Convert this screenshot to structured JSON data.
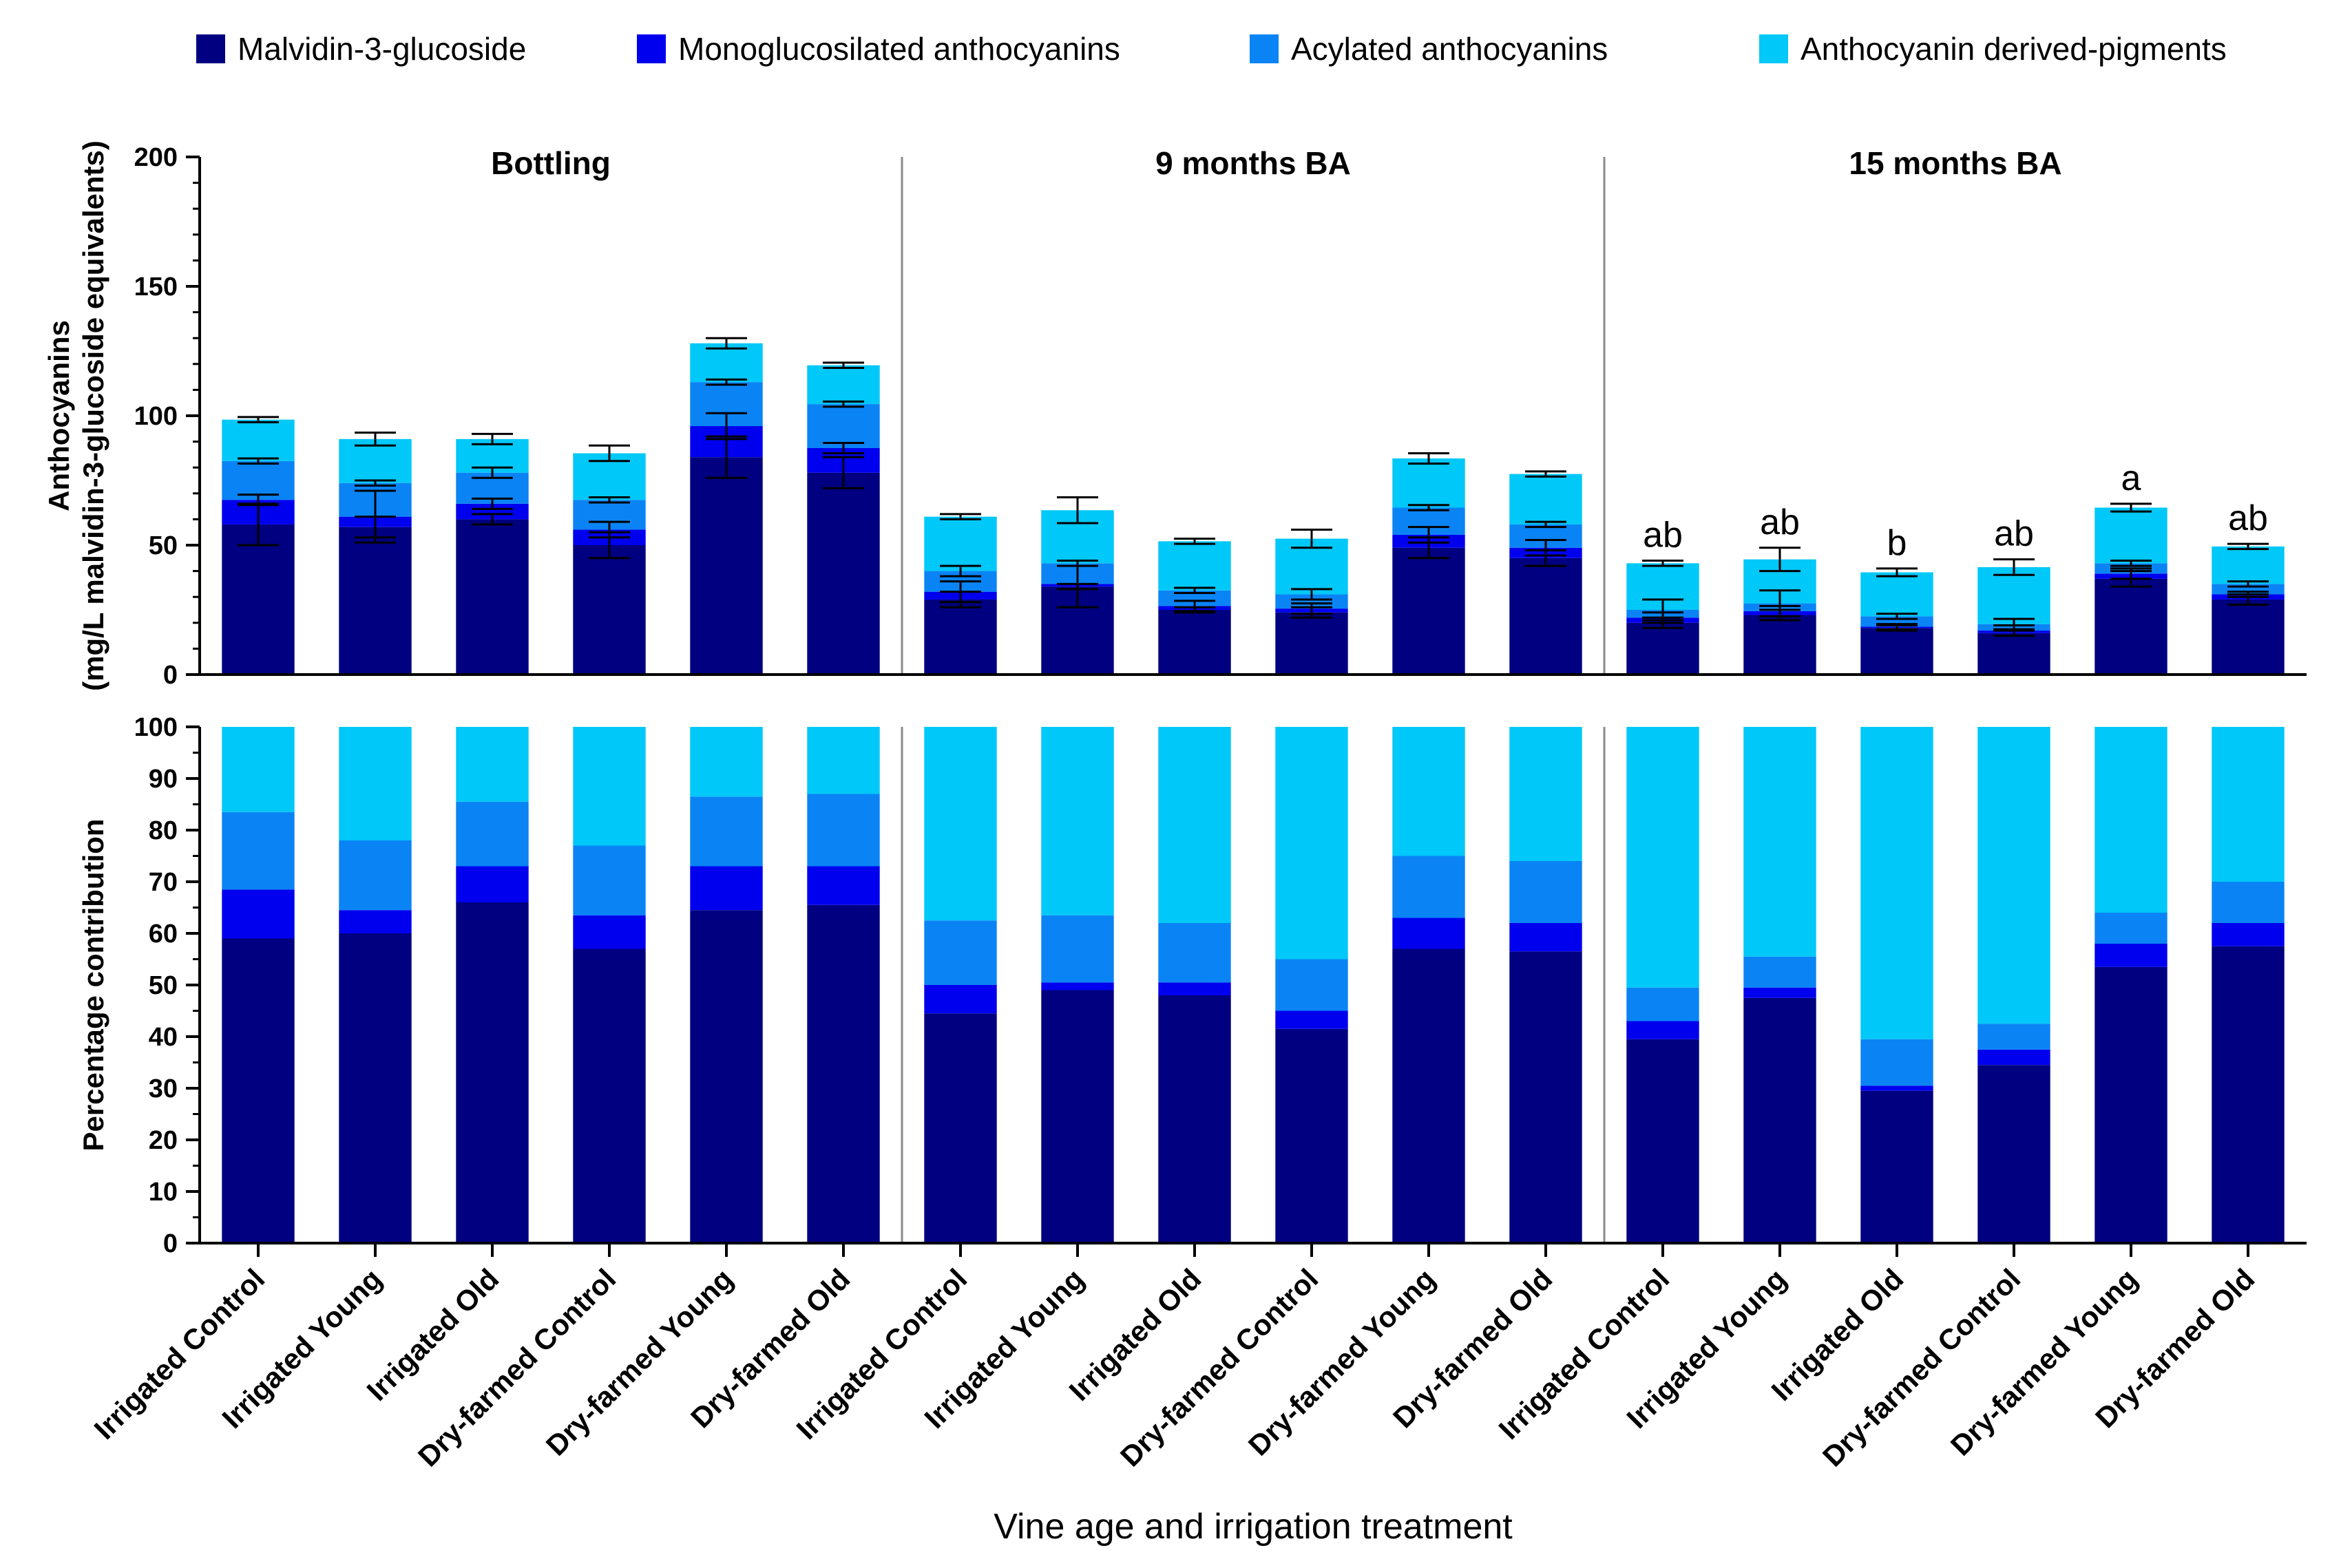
{
  "chart_data": {
    "type": "bar",
    "stacked": true,
    "legend": {
      "placement": "top",
      "entries": [
        {
          "name": "Malvidin-3-glucoside",
          "color": "#000080"
        },
        {
          "name": "Monoglucosilated anthocyanins",
          "color": "#0000EE"
        },
        {
          "name": "Acylated anthocyanins",
          "color": "#0A84F5"
        },
        {
          "name": "Anthocyanin derived-pigments",
          "color": "#00C8F8"
        }
      ]
    },
    "xlabel": "Vine age and irrigation treatment",
    "categories": [
      "Irrigated Control",
      "Irrigated Young",
      "Irrigated Old",
      "Dry-farmed Control",
      "Dry-farmed Young",
      "Dry-farmed Old",
      "Irrigated Control",
      "Irrigated Young",
      "Irrigated Old",
      "Dry-farmed Control",
      "Dry-farmed Young",
      "Dry-farmed Old",
      "Irrigated Control",
      "Irrigated Young",
      "Irrigated Old",
      "Dry-farmed Control",
      "Dry-farmed Young",
      "Dry-farmed Old"
    ],
    "groups": [
      {
        "title": "Bottling",
        "start": 0,
        "end": 5
      },
      {
        "title": "9 months BA",
        "start": 6,
        "end": 11
      },
      {
        "title": "15 months BA",
        "start": 12,
        "end": 17
      }
    ],
    "panels": [
      {
        "id": "absolute",
        "ylabel_line1": "Anthocyanins",
        "ylabel_line2": "(mg/L malvidin-3-glucoside equivalents)",
        "ylim": [
          0,
          200
        ],
        "yticks": [
          0,
          50,
          100,
          150,
          200
        ],
        "minor_step": 10,
        "series": [
          {
            "name": "Malvidin-3-glucoside",
            "values": [
              58,
              57,
              60,
              50,
              84,
              78,
              29,
              34,
              25,
              24,
              49,
              45,
              20,
              23,
              18,
              16,
              37,
              29
            ]
          },
          {
            "name": "Monoglucosilated anthocyanins",
            "values": [
              9.5,
              4,
              6,
              6,
              12,
              9.5,
              3,
              1,
              1.5,
              1.5,
              5,
              4,
              2,
              1.5,
              0.5,
              1,
              2,
              2
            ]
          },
          {
            "name": "Acylated anthocyanins",
            "values": [
              15,
              13,
              12,
              11.5,
              17,
              17,
              8,
              8,
              6,
              5.5,
              10.5,
              9,
              3,
              3,
              4,
              2.5,
              4,
              4
            ]
          },
          {
            "name": "Anthocyanin derived-pigments",
            "values": [
              16,
              17,
              13,
              18,
              15,
              15,
              21,
              20.5,
              19,
              21.5,
              19,
              19.5,
              18,
              17,
              17,
              22,
              21.5,
              14.5
            ]
          }
        ],
        "errors": [
          [
            8,
            4,
            2,
            5,
            8,
            6,
            3,
            1,
            1,
            2,
            4,
            3,
            2,
            2,
            1,
            1,
            3,
            2
          ],
          [
            2,
            10,
            2,
            3,
            5,
            2,
            4,
            9,
            2,
            2,
            3,
            3,
            2,
            2,
            1,
            2,
            2,
            1
          ],
          [
            1,
            1,
            2,
            1,
            1,
            1,
            2,
            1,
            1,
            2,
            1,
            1,
            4,
            5,
            1,
            2,
            1,
            1
          ],
          [
            1,
            2.5,
            2,
            3,
            2,
            1,
            1,
            5,
            1,
            3.5,
            2,
            1,
            1,
            4.5,
            1.5,
            3,
            1.5,
            1
          ]
        ],
        "significance": [
          "",
          "",
          "",
          "",
          "",
          "",
          "",
          "",
          "",
          "",
          "",
          "",
          "ab",
          "ab",
          "b",
          "ab",
          "a",
          "ab"
        ]
      },
      {
        "id": "percentage",
        "ylabel_line1": "Percentage contribution",
        "ylim": [
          0,
          100
        ],
        "yticks": [
          0,
          10,
          20,
          30,
          40,
          50,
          60,
          70,
          80,
          90,
          100
        ],
        "minor_step": 5,
        "series": [
          {
            "name": "Malvidin-3-glucoside",
            "values": [
              59,
              60,
              66,
              57,
              64.5,
              65.5,
              44.5,
              49,
              48,
              41.5,
              57,
              56.5,
              39.5,
              47.5,
              29.5,
              34.5,
              53.5,
              57.5
            ]
          },
          {
            "name": "Monoglucosilated anthocyanins",
            "values": [
              9.5,
              4.5,
              7,
              6.5,
              8.5,
              7.5,
              5.5,
              1.5,
              2.5,
              3.5,
              6,
              5.5,
              3.5,
              2,
              1,
              3,
              4.5,
              4.5
            ]
          },
          {
            "name": "Acylated anthocyanins",
            "values": [
              15,
              13.5,
              12.5,
              13.5,
              13.5,
              14,
              12.5,
              13,
              11.5,
              10,
              12,
              12,
              6.5,
              6,
              9,
              5,
              6,
              8
            ]
          },
          {
            "name": "Anthocyanin derived-pigments",
            "values": [
              16.5,
              22,
              14.5,
              23,
              13.5,
              13,
              37.5,
              36.5,
              38,
              45,
              25,
              26,
              50.5,
              44.5,
              60.5,
              57.5,
              36,
              30
            ]
          }
        ]
      }
    ]
  }
}
